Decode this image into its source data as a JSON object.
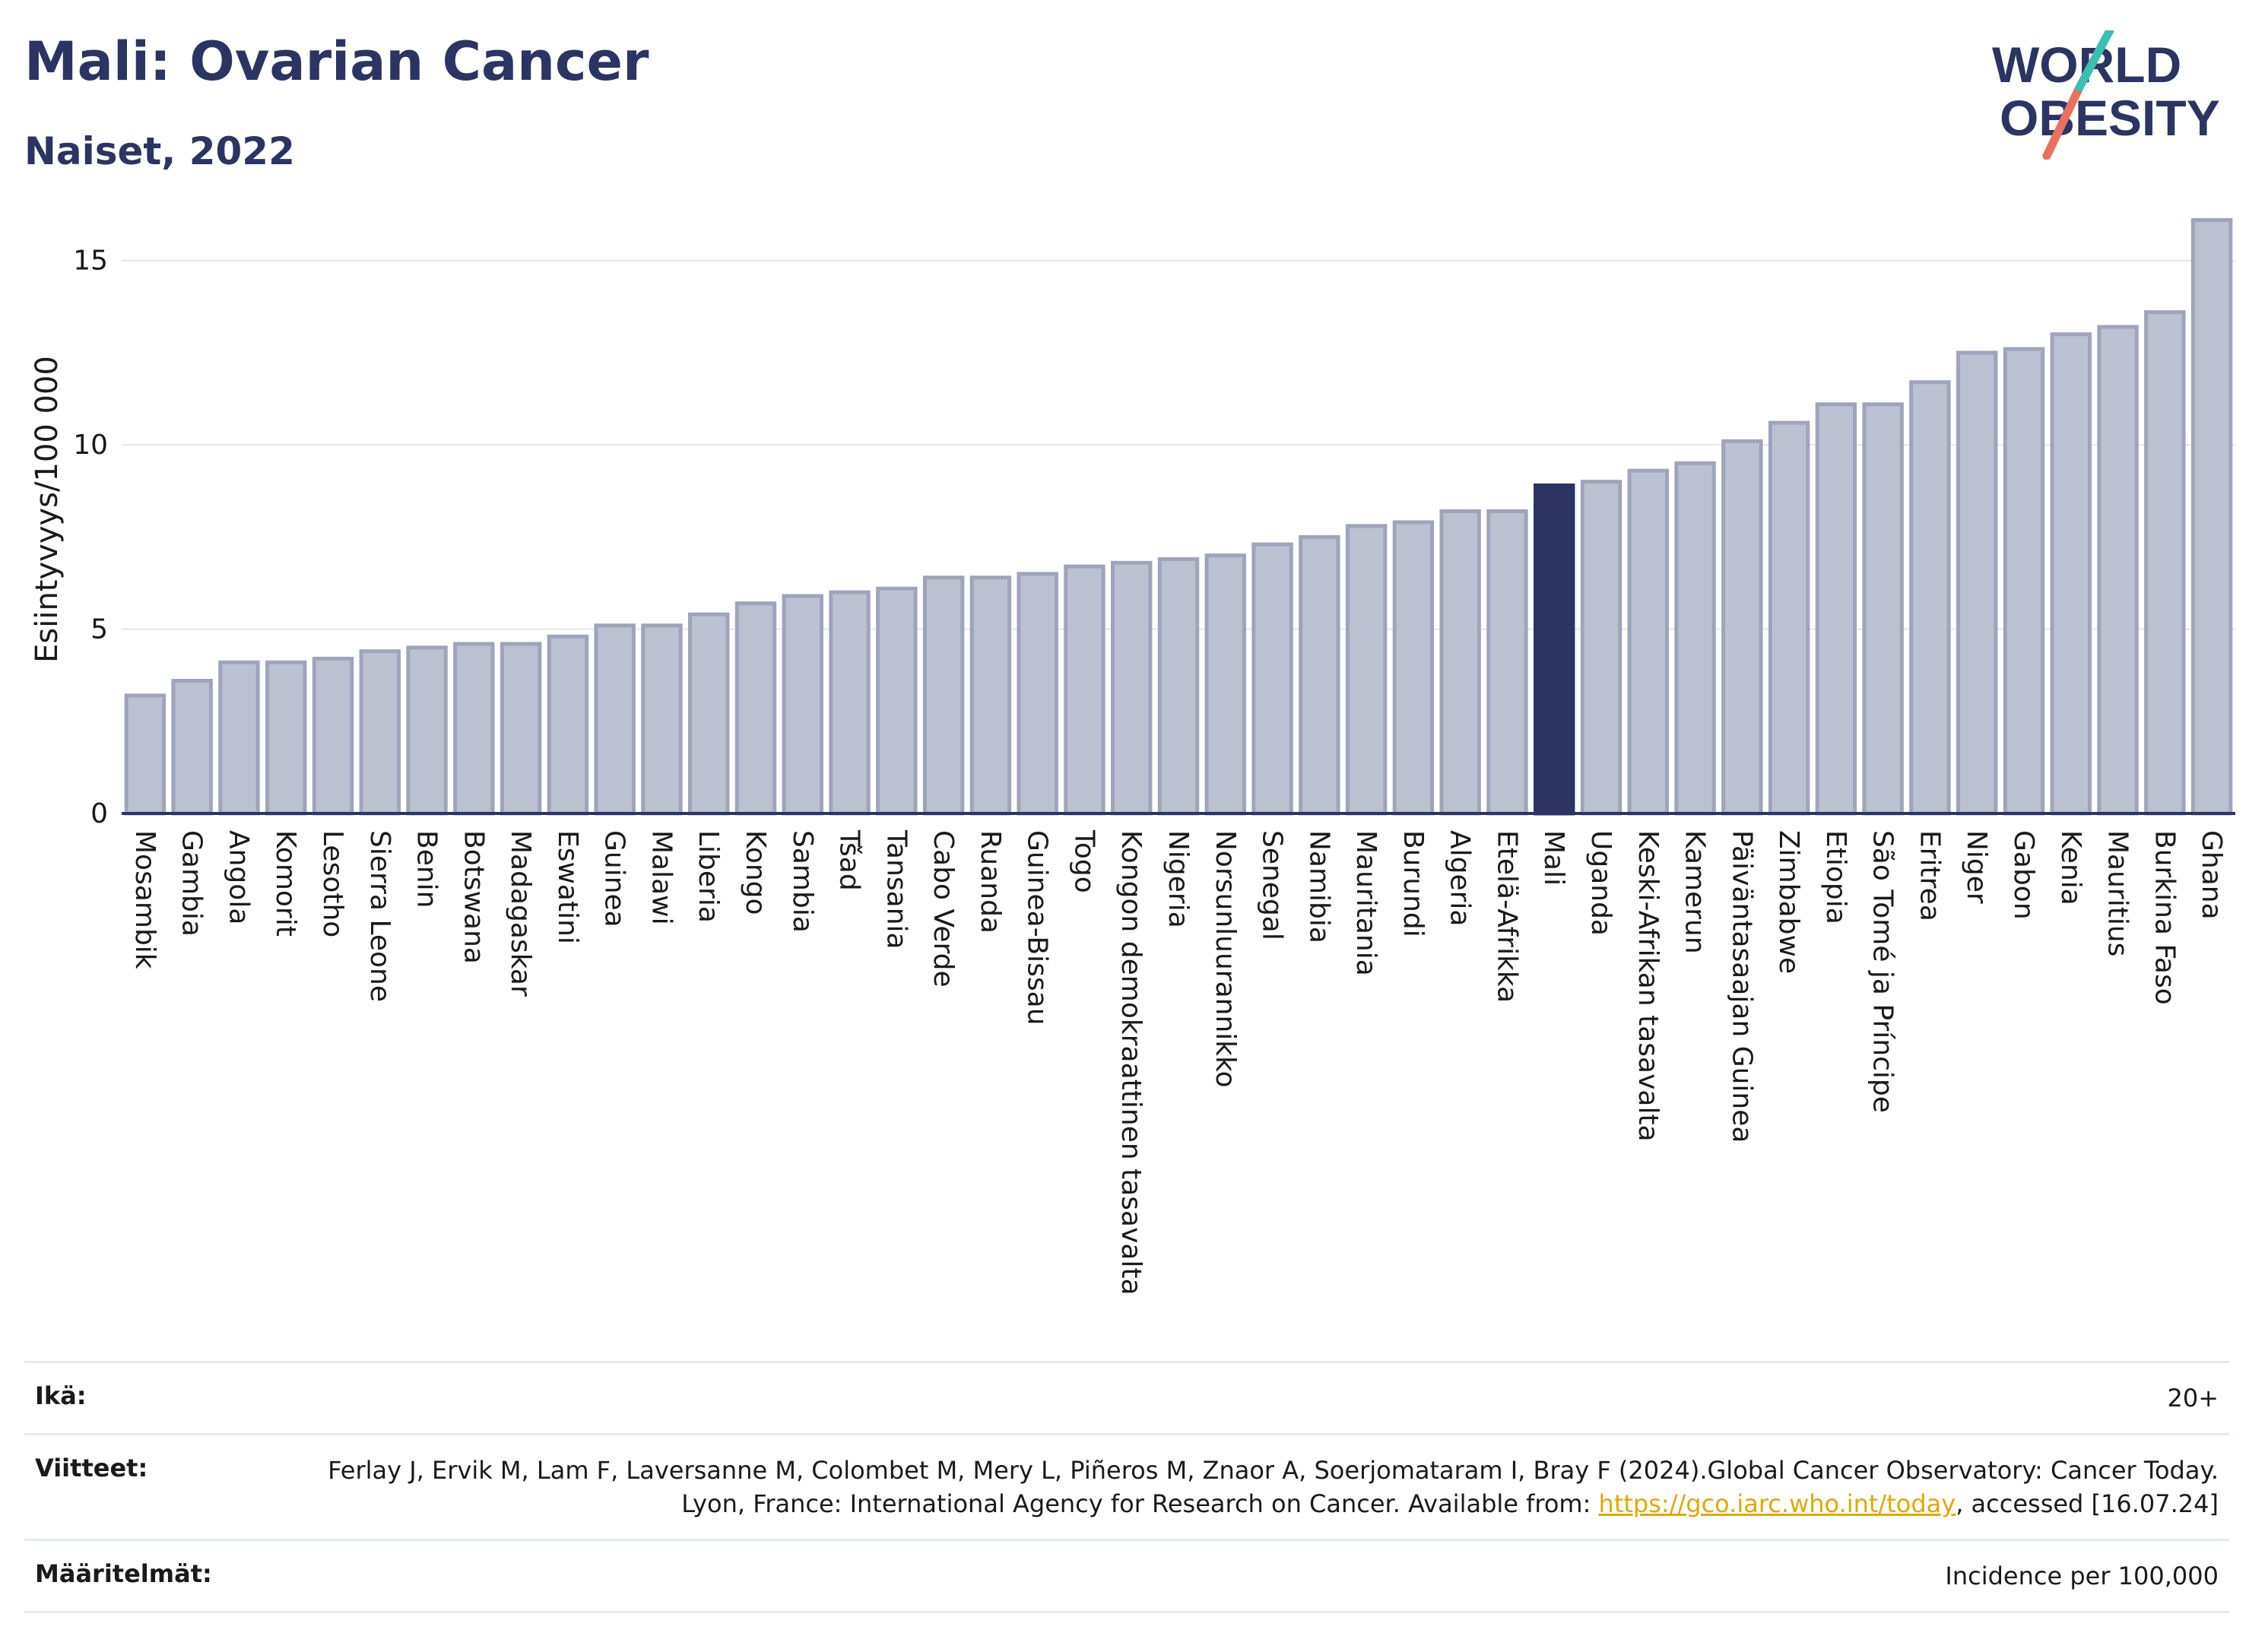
{
  "title": "Mali: Ovarian Cancer",
  "subtitle": "Naiset, 2022",
  "logo": {
    "line1": "WORLD",
    "line2": "OBESITY"
  },
  "colors": {
    "bar": "#bcc1d1",
    "bar_border": "#9ea4bb",
    "highlight": "#2b3462",
    "axis": "#2b3462",
    "grid": "#e6e6e6"
  },
  "chart_data": {
    "type": "bar",
    "ylabel": "Esiintyvyys/100 000",
    "ylim": [
      0,
      16.5
    ],
    "yticks": [
      0,
      5,
      10,
      15
    ],
    "grid": true,
    "highlight": "Mali",
    "categories": [
      "Mosambik",
      "Gambia",
      "Angola",
      "Komorit",
      "Lesotho",
      "Sierra Leone",
      "Benin",
      "Botswana",
      "Madagaskar",
      "Eswatini",
      "Guinea",
      "Malawi",
      "Liberia",
      "Kongo",
      "Sambia",
      "Tšad",
      "Tansania",
      "Cabo Verde",
      "Ruanda",
      "Guinea-Bissau",
      "Togo",
      "Kongon demokraattinen tasavalta",
      "Nigeria",
      "Norsunluurannikko",
      "Senegal",
      "Namibia",
      "Mauritania",
      "Burundi",
      "Algeria",
      "Etelä-Afrikka",
      "Mali",
      "Uganda",
      "Keski-Afrikan tasavalta",
      "Kamerun",
      "Päiväntasaajan Guinea",
      "Zimbabwe",
      "Etiopia",
      "São Tomé ja Príncipe",
      "Eritrea",
      "Niger",
      "Gabon",
      "Kenia",
      "Mauritius",
      "Burkina Faso",
      "Ghana"
    ],
    "values": [
      3.2,
      3.6,
      4.1,
      4.1,
      4.2,
      4.4,
      4.5,
      4.6,
      4.6,
      4.8,
      5.1,
      5.1,
      5.4,
      5.7,
      5.9,
      6.0,
      6.1,
      6.4,
      6.4,
      6.5,
      6.7,
      6.8,
      6.9,
      7.0,
      7.3,
      7.5,
      7.8,
      7.9,
      8.2,
      8.2,
      8.9,
      9.0,
      9.3,
      9.5,
      10.1,
      10.6,
      11.1,
      11.1,
      11.7,
      12.5,
      12.6,
      13.0,
      13.2,
      13.6,
      16.1
    ]
  },
  "info": {
    "age_label": "Ikä:",
    "age_value": "20+",
    "ref_label": "Viitteet:",
    "ref_text_1": "Ferlay J, Ervik M, Lam F, Laversanne M, Colombet M, Mery L, Piñeros M, Znaor A, Soerjomataram I, Bray F (2024).Global Cancer Observatory: Cancer Today. Lyon, France: International Agency for Research on Cancer. Available from:",
    "ref_link": "https://gco.iarc.who.int/today",
    "ref_text_2": ", accessed [16.07.24]",
    "def_label": "Määritelmät:",
    "def_value": "Incidence per 100,000"
  }
}
